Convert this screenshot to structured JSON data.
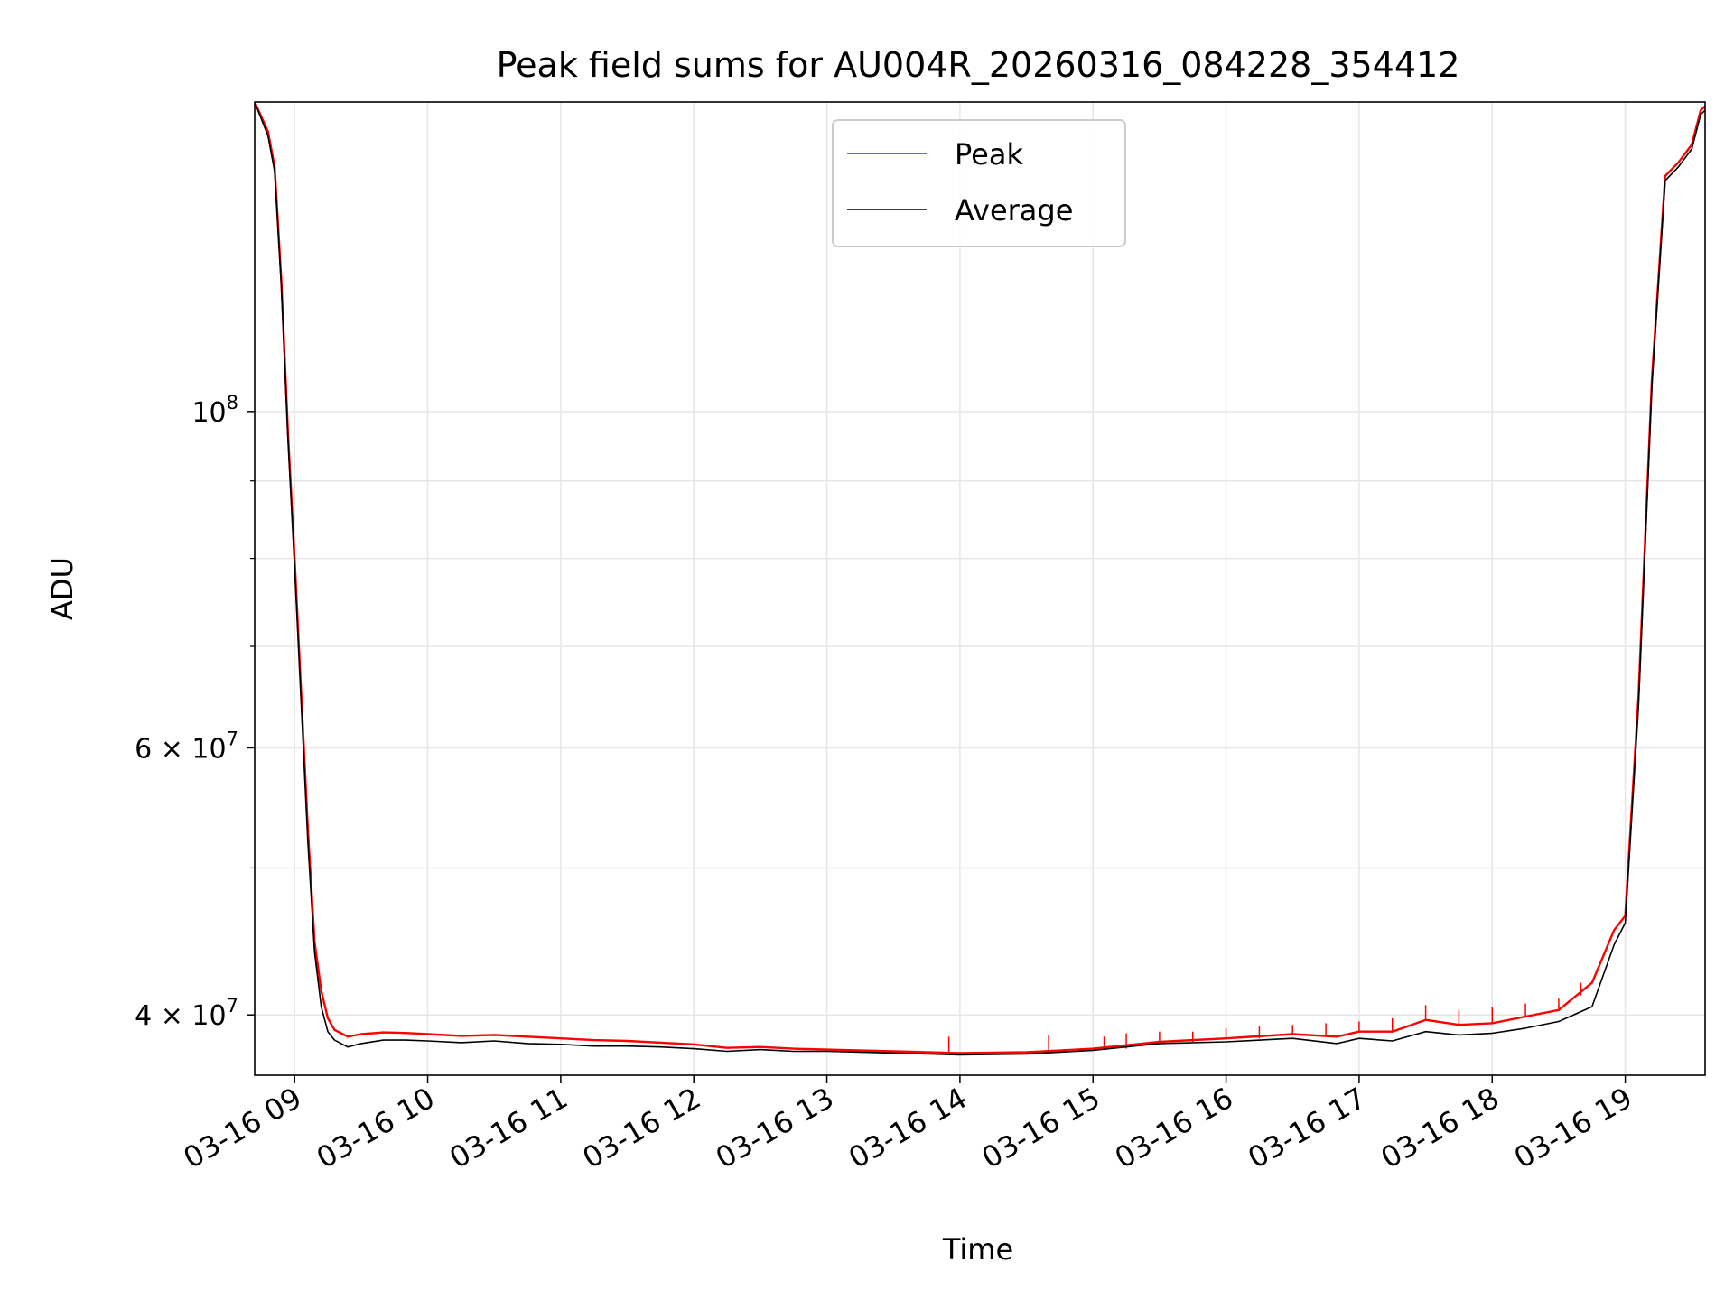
{
  "chart_data": {
    "type": "line",
    "title": "Peak field sums for AU004R_20260316_084228_354412",
    "xlabel": "Time",
    "ylabel": "ADU",
    "yscale": "log",
    "xlim": [
      "03-16 08:42",
      "03-16 19:36"
    ],
    "ylim": [
      36500000,
      160000000
    ],
    "x_ticks": [
      {
        "t": "03-16 09:00",
        "label": "03-16 09"
      },
      {
        "t": "03-16 10:00",
        "label": "03-16 10"
      },
      {
        "t": "03-16 11:00",
        "label": "03-16 11"
      },
      {
        "t": "03-16 12:00",
        "label": "03-16 12"
      },
      {
        "t": "03-16 13:00",
        "label": "03-16 13"
      },
      {
        "t": "03-16 14:00",
        "label": "03-16 14"
      },
      {
        "t": "03-16 15:00",
        "label": "03-16 15"
      },
      {
        "t": "03-16 16:00",
        "label": "03-16 16"
      },
      {
        "t": "03-16 17:00",
        "label": "03-16 17"
      },
      {
        "t": "03-16 18:00",
        "label": "03-16 18"
      },
      {
        "t": "03-16 19:00",
        "label": "03-16 19"
      }
    ],
    "y_ticks": [
      {
        "value": 40000000,
        "label": "4 × 10",
        "exp": "7"
      },
      {
        "value": 60000000,
        "label": "6 × 10",
        "exp": "7"
      },
      {
        "value": 100000000,
        "label": "10",
        "exp": "8"
      }
    ],
    "y_minor_ticks": [
      50000000,
      70000000,
      80000000,
      90000000
    ],
    "grid": true,
    "legend": {
      "placement": "upper center"
    },
    "series": [
      {
        "name": "Peak",
        "color": "#ff0000",
        "x": [
          "03-16 08:42",
          "03-16 08:48",
          "03-16 08:51",
          "03-16 08:54",
          "03-16 08:57",
          "03-16 09:00",
          "03-16 09:03",
          "03-16 09:06",
          "03-16 09:09",
          "03-16 09:12",
          "03-16 09:15",
          "03-16 09:18",
          "03-16 09:24",
          "03-16 09:30",
          "03-16 09:40",
          "03-16 09:50",
          "03-16 10:00",
          "03-16 10:15",
          "03-16 10:30",
          "03-16 10:45",
          "03-16 11:00",
          "03-16 11:15",
          "03-16 11:30",
          "03-16 11:45",
          "03-16 12:00",
          "03-16 12:15",
          "03-16 12:30",
          "03-16 12:45",
          "03-16 13:00",
          "03-16 13:30",
          "03-16 14:00",
          "03-16 14:30",
          "03-16 15:00",
          "03-16 15:30",
          "03-16 16:00",
          "03-16 16:30",
          "03-16 16:50",
          "03-16 17:00",
          "03-16 17:15",
          "03-16 17:30",
          "03-16 17:45",
          "03-16 18:00",
          "03-16 18:15",
          "03-16 18:30",
          "03-16 18:45",
          "03-16 18:55",
          "03-16 19:00",
          "03-16 19:06",
          "03-16 19:12",
          "03-16 19:18",
          "03-16 19:24",
          "03-16 19:30",
          "03-16 19:34",
          "03-16 19:36"
        ],
        "y": [
          160000000,
          153000000,
          145000000,
          122000000,
          97000000,
          80000000,
          65000000,
          53000000,
          44700000,
          41500000,
          39800000,
          39100000,
          38700000,
          38850000,
          38950000,
          38920000,
          38850000,
          38750000,
          38800000,
          38700000,
          38600000,
          38500000,
          38450000,
          38350000,
          38250000,
          38050000,
          38100000,
          38000000,
          37950000,
          37850000,
          37750000,
          37800000,
          38000000,
          38400000,
          38600000,
          38850000,
          38700000,
          39000000,
          39000000,
          39700000,
          39400000,
          39500000,
          39900000,
          40300000,
          42000000,
          45500000,
          46500000,
          65000000,
          105000000,
          143000000,
          146000000,
          150000000,
          158000000,
          159000000
        ],
        "spikes": [
          {
            "t": "03-16 15:05",
            "y": 38700000
          },
          {
            "t": "03-16 15:15",
            "y": 38900000
          },
          {
            "t": "03-16 15:30",
            "y": 39000000
          },
          {
            "t": "03-16 15:45",
            "y": 39000000
          },
          {
            "t": "03-16 16:00",
            "y": 39200000
          },
          {
            "t": "03-16 16:15",
            "y": 39300000
          },
          {
            "t": "03-16 16:30",
            "y": 39400000
          },
          {
            "t": "03-16 16:45",
            "y": 39500000
          },
          {
            "t": "03-16 17:00",
            "y": 39600000
          },
          {
            "t": "03-16 17:15",
            "y": 39800000
          },
          {
            "t": "03-16 17:30",
            "y": 40600000
          },
          {
            "t": "03-16 17:45",
            "y": 40300000
          },
          {
            "t": "03-16 18:00",
            "y": 40500000
          },
          {
            "t": "03-16 18:15",
            "y": 40700000
          },
          {
            "t": "03-16 18:30",
            "y": 41000000
          },
          {
            "t": "03-16 18:40",
            "y": 41200000
          },
          {
            "t": "03-16 14:40",
            "y": 38800000
          },
          {
            "t": "03-16 13:55",
            "y": 38700000
          }
        ]
      },
      {
        "name": "Average",
        "color": "#000000",
        "x": [
          "03-16 08:42",
          "03-16 08:48",
          "03-16 08:51",
          "03-16 08:54",
          "03-16 08:57",
          "03-16 09:00",
          "03-16 09:03",
          "03-16 09:06",
          "03-16 09:09",
          "03-16 09:12",
          "03-16 09:15",
          "03-16 09:18",
          "03-16 09:24",
          "03-16 09:30",
          "03-16 09:40",
          "03-16 09:50",
          "03-16 10:00",
          "03-16 10:15",
          "03-16 10:30",
          "03-16 10:45",
          "03-16 11:00",
          "03-16 11:15",
          "03-16 11:30",
          "03-16 11:45",
          "03-16 12:00",
          "03-16 12:15",
          "03-16 12:30",
          "03-16 12:45",
          "03-16 13:00",
          "03-16 13:30",
          "03-16 14:00",
          "03-16 14:30",
          "03-16 15:00",
          "03-16 15:30",
          "03-16 16:00",
          "03-16 16:30",
          "03-16 16:50",
          "03-16 17:00",
          "03-16 17:15",
          "03-16 17:30",
          "03-16 17:45",
          "03-16 18:00",
          "03-16 18:15",
          "03-16 18:30",
          "03-16 18:45",
          "03-16 18:55",
          "03-16 19:00",
          "03-16 19:06",
          "03-16 19:12",
          "03-16 19:18",
          "03-16 19:24",
          "03-16 19:30",
          "03-16 19:34",
          "03-16 19:36"
        ],
        "y": [
          160000000,
          152000000,
          144000000,
          121000000,
          96000000,
          79000000,
          64000000,
          52000000,
          44000000,
          40500000,
          39000000,
          38500000,
          38100000,
          38300000,
          38500000,
          38500000,
          38450000,
          38350000,
          38450000,
          38300000,
          38250000,
          38150000,
          38150000,
          38100000,
          38000000,
          37850000,
          37950000,
          37850000,
          37850000,
          37750000,
          37650000,
          37700000,
          37900000,
          38300000,
          38400000,
          38600000,
          38300000,
          38600000,
          38450000,
          39000000,
          38800000,
          38900000,
          39200000,
          39600000,
          40500000,
          44500000,
          46000000,
          64000000,
          104000000,
          142000000,
          145000000,
          149000000,
          157000000,
          158000000
        ]
      }
    ]
  }
}
